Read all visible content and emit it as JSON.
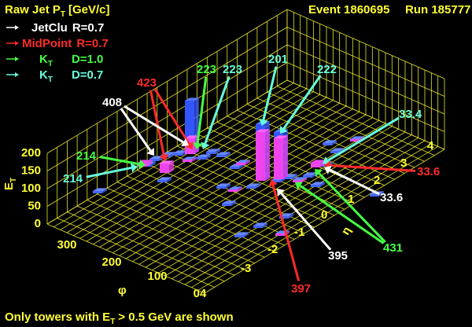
{
  "header": {
    "title": "Raw Jet P",
    "title_sub": "T",
    "title_unit": "[GeV/c]",
    "event": "Event 1860695",
    "run": "Run 185777"
  },
  "legend": [
    {
      "name": "JetClu",
      "param": "R=0.7",
      "color": "#ffffff"
    },
    {
      "name": "MidPoint",
      "param": "R=0.7",
      "color": "#ff2a2a"
    },
    {
      "name": "K",
      "sub": "T",
      "param": "D=1.0",
      "color": "#44ff44"
    },
    {
      "name": "K",
      "sub": "T",
      "param": "D=0.7",
      "color": "#66ffdd"
    }
  ],
  "annotations": [
    "423",
    "408",
    "223",
    "223",
    "201",
    "222",
    "33.4",
    "33.6",
    "33.6",
    "431",
    "395",
    "397",
    "214",
    "214"
  ],
  "axes": {
    "z_label": "E",
    "z_label_sub": "T",
    "z_ticks": [
      "0",
      "50",
      "100",
      "150",
      "200"
    ],
    "phi_label": "φ",
    "phi_ticks": [
      "300",
      "200",
      "100",
      "04"
    ],
    "eta_label": "η",
    "eta_ticks": [
      "4",
      "3",
      "2",
      "1",
      "0",
      "-1",
      "-2",
      "-3"
    ]
  },
  "footer": {
    "text_a": "Only towers with E",
    "text_sub": "T",
    "text_b": "> 0.5 GeV are shown"
  }
}
